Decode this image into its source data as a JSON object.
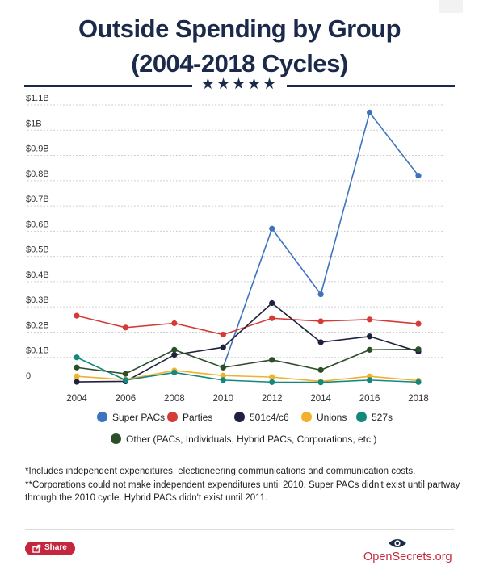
{
  "title": {
    "line1": "Outside Spending by Group",
    "line2": "(2004-2018 Cycles)"
  },
  "divider": {
    "stars": "★★★★★"
  },
  "chart_data": {
    "type": "line",
    "title": "Outside Spending by Group (2004-2018 Cycles)",
    "xlabel": "",
    "ylabel": "",
    "categories": [
      "2004",
      "2006",
      "2008",
      "2010",
      "2012",
      "2014",
      "2016",
      "2018"
    ],
    "ylim": [
      0,
      1.1
    ],
    "y_ticks": [
      {
        "value": 0,
        "label": "0"
      },
      {
        "value": 0.1,
        "label": "$0.1B"
      },
      {
        "value": 0.2,
        "label": "$0.2B"
      },
      {
        "value": 0.3,
        "label": "$0.3B"
      },
      {
        "value": 0.4,
        "label": "$0.4B"
      },
      {
        "value": 0.5,
        "label": "$0.5B"
      },
      {
        "value": 0.6,
        "label": "$0.6B"
      },
      {
        "value": 0.7,
        "label": "$0.7B"
      },
      {
        "value": 0.8,
        "label": "$0.8B"
      },
      {
        "value": 0.9,
        "label": "$0.9B"
      },
      {
        "value": 1.0,
        "label": "$1B"
      },
      {
        "value": 1.1,
        "label": "$1.1B"
      }
    ],
    "grid": "horizontal dashed",
    "legend_position": "bottom",
    "series": [
      {
        "name": "Super PACs",
        "color": "#3e74bd",
        "values": [
          null,
          null,
          null,
          0.06,
          0.61,
          0.35,
          1.07,
          0.82
        ]
      },
      {
        "name": "Parties",
        "color": "#d63a35",
        "values": [
          0.265,
          0.218,
          0.235,
          0.19,
          0.255,
          0.243,
          0.25,
          0.233
        ]
      },
      {
        "name": "501c4/c6",
        "color": "#1f2140",
        "values": [
          0.003,
          0.005,
          0.11,
          0.14,
          0.315,
          0.16,
          0.183,
          0.123
        ]
      },
      {
        "name": "Unions",
        "color": "#f0b12b",
        "values": [
          0.025,
          0.012,
          0.048,
          0.028,
          0.022,
          0.005,
          0.025,
          0.008
        ]
      },
      {
        "name": "527s",
        "color": "#13887c",
        "values": [
          0.1,
          0.01,
          0.04,
          0.01,
          0.002,
          0.001,
          0.01,
          0.002
        ]
      },
      {
        "name": "Other (PACs, Individuals, Hybrid PACs, Corporations, etc.)",
        "color": "#2c4f2a",
        "values": [
          0.06,
          0.035,
          0.13,
          0.06,
          0.09,
          0.05,
          0.13,
          0.132
        ]
      }
    ]
  },
  "notes": {
    "line1": "*Includes independent expenditures, electioneering communications and communication costs.",
    "line2": "**Corporations could not make independent expenditures until 2010. Super PACs didn't exist until partway through the 2010 cycle. Hybrid PACs didn't exist until 2011."
  },
  "share": {
    "label": "Share",
    "icon": "share-icon"
  },
  "logo": {
    "text": "OpenSecrets.org",
    "icon": "eye-icon",
    "color": "#c4263d"
  }
}
